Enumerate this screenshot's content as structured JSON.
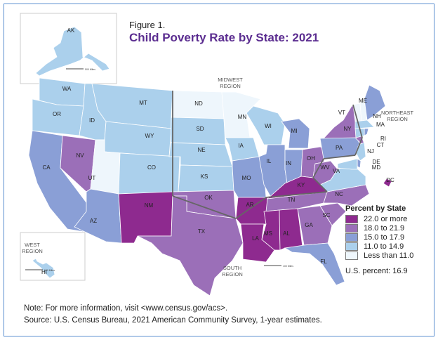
{
  "figure_label": "Figure 1.",
  "title": "Child Poverty Rate by State: 2021",
  "legend": {
    "title": "Percent by State",
    "items": [
      {
        "label": "22.0 or more",
        "color": "#8e2a8f"
      },
      {
        "label": "18.0 to 21.9",
        "color": "#9b6fb8"
      },
      {
        "label": "15.0 to 17.9",
        "color": "#8a9fd6"
      },
      {
        "label": "11.0 to 14.9",
        "color": "#abd0ec"
      },
      {
        "label": "Less than 11.0",
        "color": "#eef6fc"
      }
    ],
    "us_percent": "U.S. percent: 16.9"
  },
  "regions": {
    "west": [
      "WEST",
      "REGION"
    ],
    "midwest": [
      "MIDWEST",
      "REGION"
    ],
    "northeast": [
      "NORTHEAST",
      "REGION"
    ],
    "south": [
      "SOUTH",
      "REGION"
    ]
  },
  "scale_labels": {
    "ak": "500 Miles",
    "hi": "100 Miles",
    "conus": "300 Miles",
    "south": "100 Miles"
  },
  "states": [
    {
      "abbr": "WA",
      "cat": 3
    },
    {
      "abbr": "OR",
      "cat": 3
    },
    {
      "abbr": "CA",
      "cat": 2
    },
    {
      "abbr": "NV",
      "cat": 1
    },
    {
      "abbr": "ID",
      "cat": 3
    },
    {
      "abbr": "MT",
      "cat": 3
    },
    {
      "abbr": "WY",
      "cat": 3
    },
    {
      "abbr": "UT",
      "cat": 4
    },
    {
      "abbr": "CO",
      "cat": 3
    },
    {
      "abbr": "AZ",
      "cat": 2
    },
    {
      "abbr": "NM",
      "cat": 0
    },
    {
      "abbr": "ND",
      "cat": 4
    },
    {
      "abbr": "SD",
      "cat": 3
    },
    {
      "abbr": "NE",
      "cat": 3
    },
    {
      "abbr": "KS",
      "cat": 3
    },
    {
      "abbr": "OK",
      "cat": 1
    },
    {
      "abbr": "TX",
      "cat": 1
    },
    {
      "abbr": "MN",
      "cat": 4
    },
    {
      "abbr": "IA",
      "cat": 3
    },
    {
      "abbr": "MO",
      "cat": 2
    },
    {
      "abbr": "AR",
      "cat": 0
    },
    {
      "abbr": "LA",
      "cat": 0
    },
    {
      "abbr": "WI",
      "cat": 3
    },
    {
      "abbr": "IL",
      "cat": 2
    },
    {
      "abbr": "MI",
      "cat": 2
    },
    {
      "abbr": "IN",
      "cat": 2
    },
    {
      "abbr": "OH",
      "cat": 1
    },
    {
      "abbr": "KY",
      "cat": 0
    },
    {
      "abbr": "TN",
      "cat": 1
    },
    {
      "abbr": "MS",
      "cat": 0
    },
    {
      "abbr": "AL",
      "cat": 0
    },
    {
      "abbr": "GA",
      "cat": 1
    },
    {
      "abbr": "FL",
      "cat": 2
    },
    {
      "abbr": "SC",
      "cat": 1
    },
    {
      "abbr": "NC",
      "cat": 1
    },
    {
      "abbr": "VA",
      "cat": 3
    },
    {
      "abbr": "WV",
      "cat": 1
    },
    {
      "abbr": "PA",
      "cat": 2
    },
    {
      "abbr": "NY",
      "cat": 1
    },
    {
      "abbr": "VT",
      "cat": 4
    },
    {
      "abbr": "NH",
      "cat": 4
    },
    {
      "abbr": "ME",
      "cat": 2
    },
    {
      "abbr": "MA",
      "cat": 3
    },
    {
      "abbr": "RI",
      "cat": 2
    },
    {
      "abbr": "CT",
      "cat": 3
    },
    {
      "abbr": "NJ",
      "cat": 3
    },
    {
      "abbr": "DE",
      "cat": 2
    },
    {
      "abbr": "MD",
      "cat": 3
    },
    {
      "abbr": "DC",
      "cat": 0
    },
    {
      "abbr": "AK",
      "cat": 3
    },
    {
      "abbr": "HI",
      "cat": 3
    }
  ],
  "notes": [
    "Note: For more information, visit <www.census.gov/acs>.",
    "Source: U.S. Census Bureau, 2021 American Community Survey, 1-year estimates."
  ]
}
